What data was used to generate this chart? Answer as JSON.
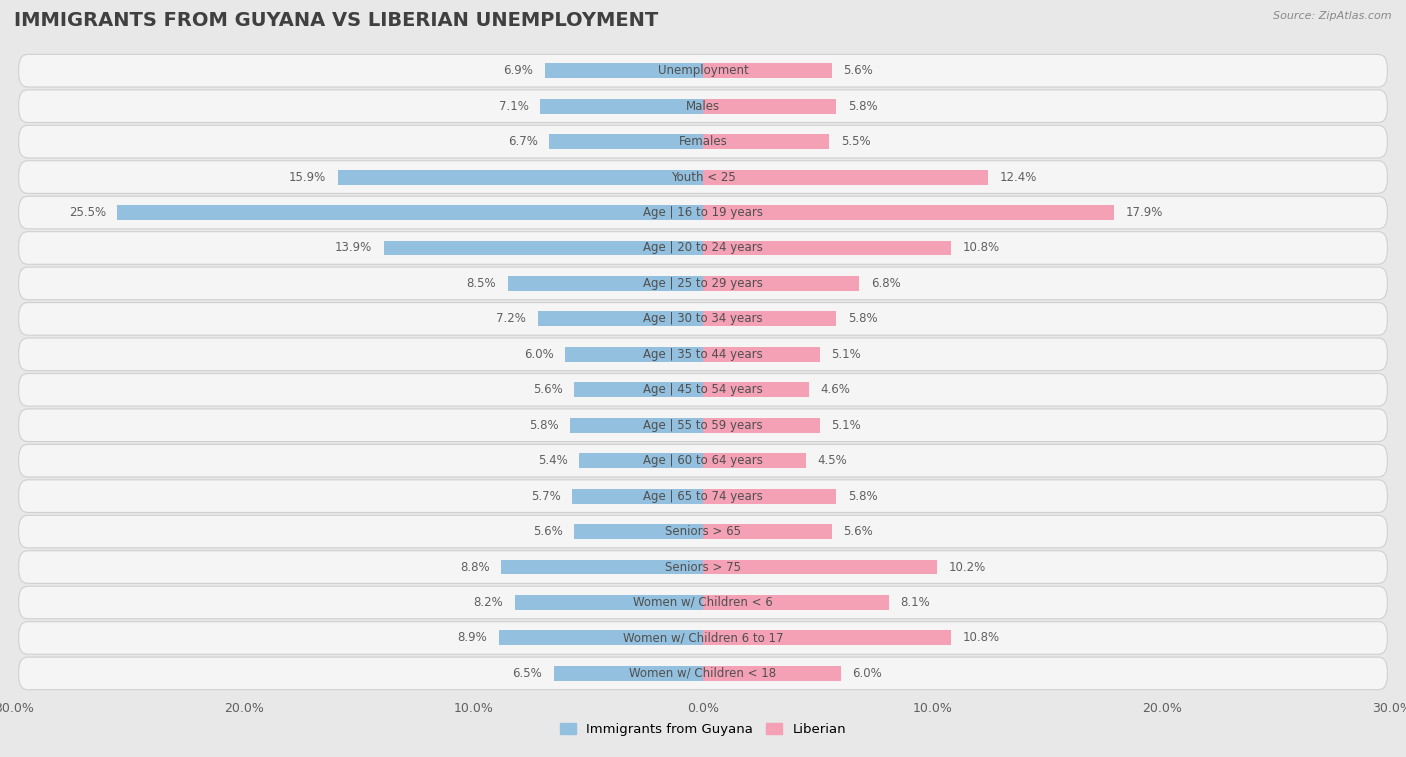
{
  "title": "IMMIGRANTS FROM GUYANA VS LIBERIAN UNEMPLOYMENT",
  "source": "Source: ZipAtlas.com",
  "categories": [
    "Unemployment",
    "Males",
    "Females",
    "Youth < 25",
    "Age | 16 to 19 years",
    "Age | 20 to 24 years",
    "Age | 25 to 29 years",
    "Age | 30 to 34 years",
    "Age | 35 to 44 years",
    "Age | 45 to 54 years",
    "Age | 55 to 59 years",
    "Age | 60 to 64 years",
    "Age | 65 to 74 years",
    "Seniors > 65",
    "Seniors > 75",
    "Women w/ Children < 6",
    "Women w/ Children 6 to 17",
    "Women w/ Children < 18"
  ],
  "left_values": [
    6.9,
    7.1,
    6.7,
    15.9,
    25.5,
    13.9,
    8.5,
    7.2,
    6.0,
    5.6,
    5.8,
    5.4,
    5.7,
    5.6,
    8.8,
    8.2,
    8.9,
    6.5
  ],
  "right_values": [
    5.6,
    5.8,
    5.5,
    12.4,
    17.9,
    10.8,
    6.8,
    5.8,
    5.1,
    4.6,
    5.1,
    4.5,
    5.8,
    5.6,
    10.2,
    8.1,
    10.8,
    6.0
  ],
  "left_color": "#92c0de",
  "right_color": "#f4a0b5",
  "left_label": "Immigrants from Guyana",
  "right_label": "Liberian",
  "xlim": 30.0,
  "background_color": "#e8e8e8",
  "row_fill_color": "#f5f5f5",
  "row_border_color": "#d0d0d0",
  "title_color": "#404040",
  "value_color": "#606060",
  "label_color": "#505050",
  "title_fontsize": 14,
  "axis_fontsize": 9,
  "label_fontsize": 8.5,
  "value_fontsize": 8.5
}
